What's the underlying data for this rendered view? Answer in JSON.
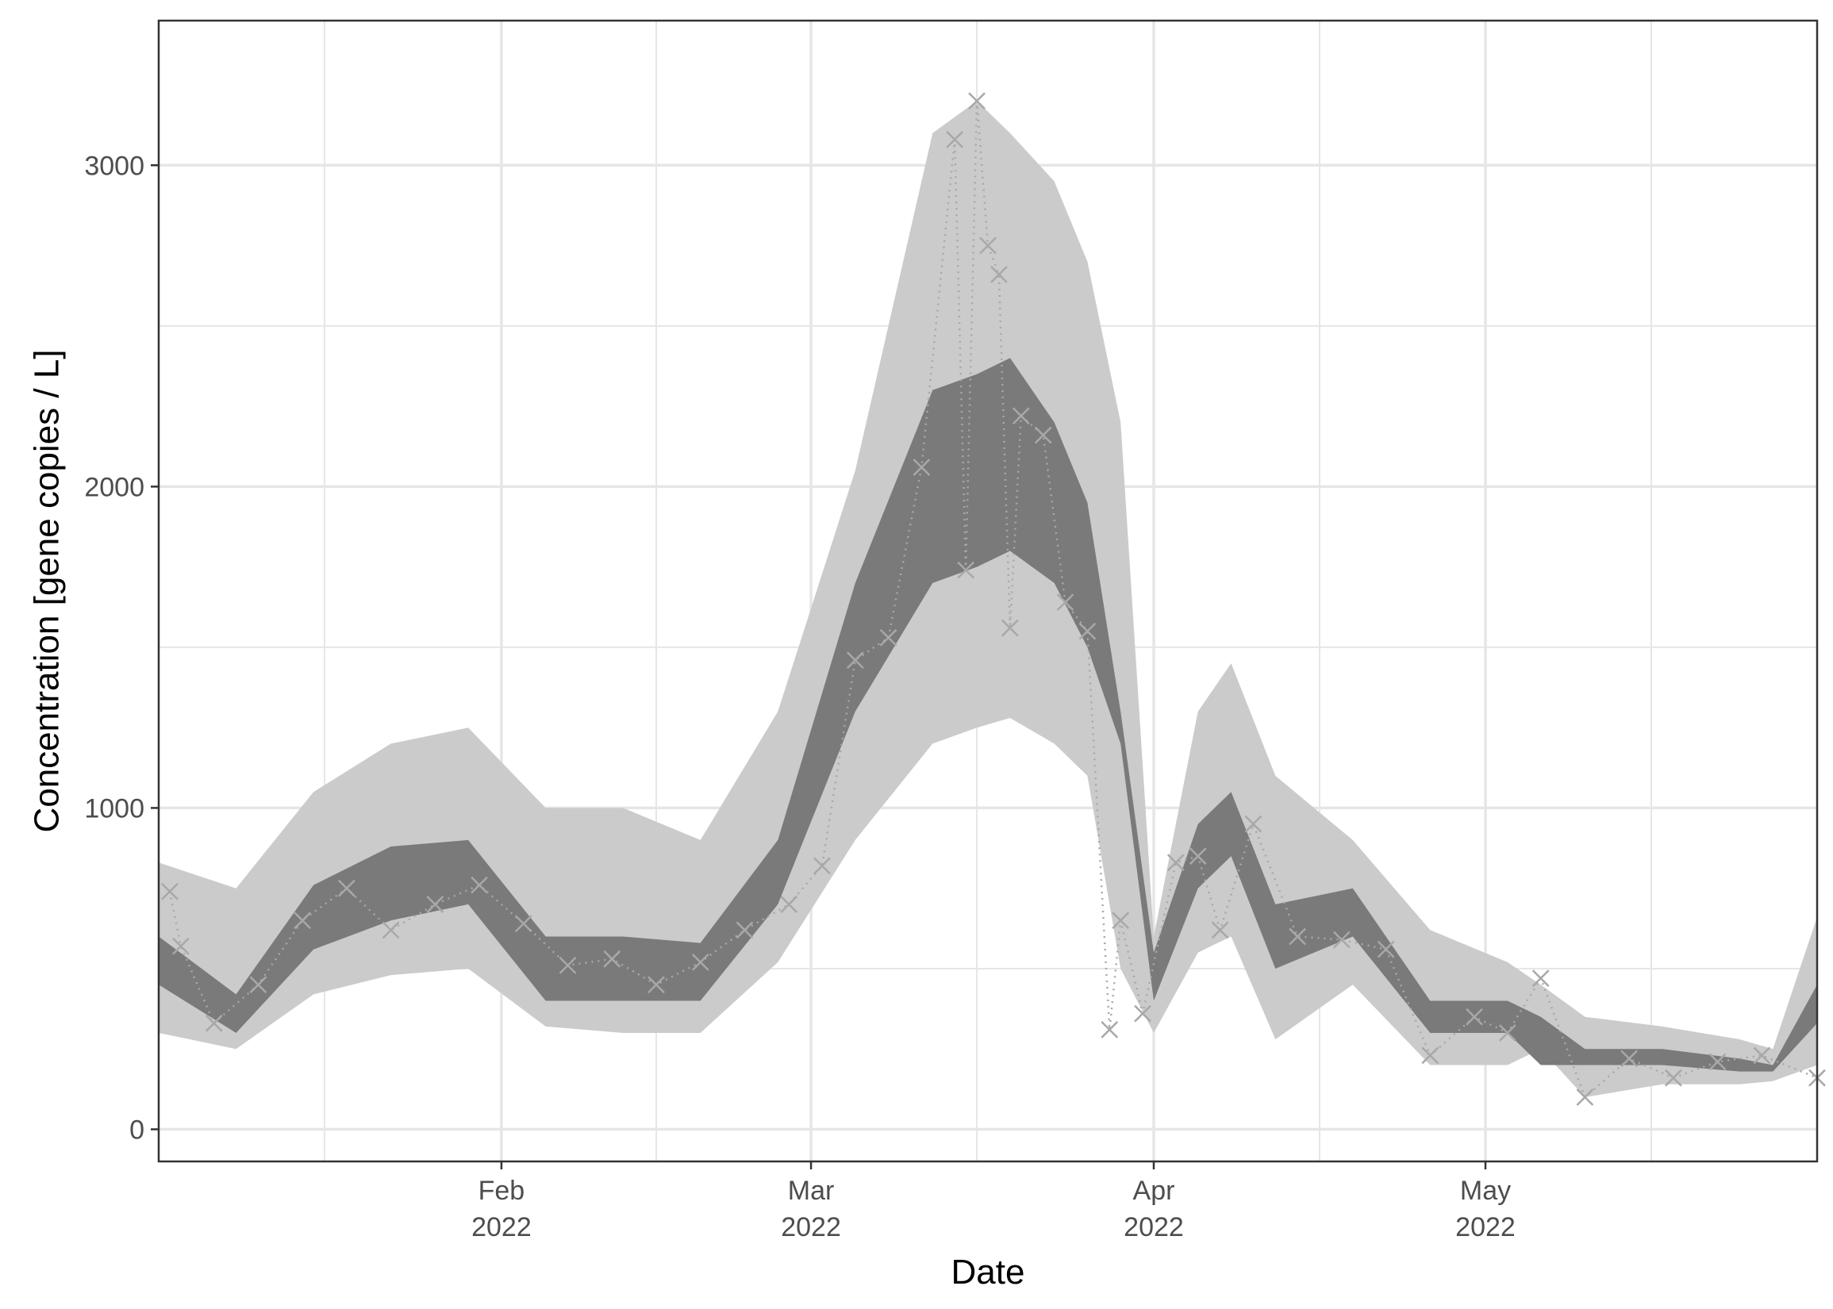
{
  "chart_data": {
    "type": "line",
    "xlabel": "Date",
    "ylabel": "Concentration [gene copies / L]",
    "x_start": "2022-01-01",
    "x_end": "2022-05-31",
    "ylim": [
      -100,
      3450
    ],
    "y_ticks": [
      0,
      1000,
      2000,
      3000
    ],
    "y_tick_labels": [
      "0",
      "1000",
      "2000",
      "3000"
    ],
    "x_ticks": [
      {
        "date": "2022-02-01",
        "label_line1": "Feb",
        "label_line2": "2022"
      },
      {
        "date": "2022-03-01",
        "label_line1": "Mar",
        "label_line2": "2022"
      },
      {
        "date": "2022-04-01",
        "label_line1": "Apr",
        "label_line2": "2022"
      },
      {
        "date": "2022-05-01",
        "label_line1": "May",
        "label_line2": "2022"
      }
    ],
    "x_minor_grid": [
      "2022-01-16",
      "2022-02-15",
      "2022-03-16",
      "2022-04-16",
      "2022-05-16"
    ],
    "grid": true,
    "colors": {
      "outer_band": "#cbcbcb",
      "inner_band": "#7a7a7a",
      "observations": "#a8a8a8",
      "grid": "#e6e6e6",
      "panel_border": "#333333"
    },
    "bands": {
      "x": [
        "2022-01-01",
        "2022-01-08",
        "2022-01-15",
        "2022-01-22",
        "2022-01-29",
        "2022-02-05",
        "2022-02-12",
        "2022-02-19",
        "2022-02-26",
        "2022-03-05",
        "2022-03-12",
        "2022-03-16",
        "2022-03-19",
        "2022-03-23",
        "2022-03-26",
        "2022-03-29",
        "2022-04-01",
        "2022-04-05",
        "2022-04-08",
        "2022-04-12",
        "2022-04-19",
        "2022-04-26",
        "2022-05-03",
        "2022-05-06",
        "2022-05-10",
        "2022-05-17",
        "2022-05-24",
        "2022-05-27",
        "2022-05-31"
      ],
      "outer_low": [
        300,
        250,
        420,
        480,
        500,
        320,
        300,
        300,
        520,
        900,
        1200,
        1250,
        1280,
        1200,
        1100,
        500,
        300,
        550,
        600,
        280,
        450,
        200,
        200,
        250,
        100,
        140,
        140,
        150,
        200
      ],
      "outer_high": [
        830,
        750,
        1050,
        1200,
        1250,
        1000,
        1000,
        900,
        1300,
        2050,
        3100,
        3200,
        3100,
        2950,
        2700,
        2200,
        600,
        1300,
        1450,
        1100,
        900,
        620,
        520,
        450,
        350,
        320,
        280,
        250,
        660
      ],
      "inner_low": [
        450,
        300,
        560,
        650,
        700,
        400,
        400,
        400,
        700,
        1300,
        1700,
        1750,
        1800,
        1700,
        1500,
        1200,
        400,
        750,
        850,
        500,
        600,
        300,
        300,
        200,
        200,
        200,
        180,
        180,
        330
      ],
      "inner_high": [
        600,
        420,
        760,
        880,
        900,
        600,
        600,
        580,
        900,
        1700,
        2300,
        2350,
        2400,
        2200,
        1950,
        1300,
        550,
        950,
        1050,
        700,
        750,
        400,
        400,
        350,
        250,
        250,
        220,
        200,
        450
      ]
    },
    "observations": {
      "x": [
        "2022-01-02",
        "2022-01-03",
        "2022-01-06",
        "2022-01-10",
        "2022-01-14",
        "2022-01-18",
        "2022-01-22",
        "2022-01-26",
        "2022-01-30",
        "2022-02-03",
        "2022-02-07",
        "2022-02-11",
        "2022-02-15",
        "2022-02-19",
        "2022-02-23",
        "2022-02-27",
        "2022-03-02",
        "2022-03-05",
        "2022-03-08",
        "2022-03-11",
        "2022-03-14",
        "2022-03-15",
        "2022-03-16",
        "2022-03-17",
        "2022-03-18",
        "2022-03-19",
        "2022-03-20",
        "2022-03-22",
        "2022-03-24",
        "2022-03-26",
        "2022-03-28",
        "2022-03-29",
        "2022-03-31",
        "2022-04-03",
        "2022-04-05",
        "2022-04-07",
        "2022-04-10",
        "2022-04-14",
        "2022-04-18",
        "2022-04-22",
        "2022-04-26",
        "2022-04-30",
        "2022-05-03",
        "2022-05-06",
        "2022-05-10",
        "2022-05-14",
        "2022-05-18",
        "2022-05-22",
        "2022-05-26",
        "2022-05-31"
      ],
      "y": [
        740,
        570,
        330,
        450,
        650,
        750,
        620,
        700,
        760,
        640,
        510,
        530,
        450,
        520,
        620,
        700,
        820,
        1460,
        1530,
        2060,
        3080,
        1740,
        3200,
        2750,
        2660,
        1560,
        2220,
        2160,
        1640,
        1550,
        310,
        650,
        360,
        830,
        850,
        620,
        950,
        600,
        590,
        560,
        230,
        350,
        300,
        470,
        100,
        220,
        160,
        210,
        230,
        160
      ]
    }
  }
}
